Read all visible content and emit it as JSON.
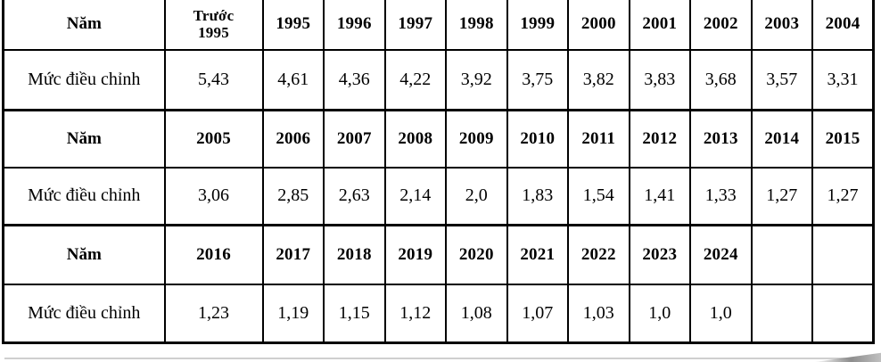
{
  "table": {
    "year_label": "Năm",
    "value_label": "Mức điều chỉnh",
    "sections": [
      {
        "years": [
          "Trước\n1995",
          "1995",
          "1996",
          "1997",
          "1998",
          "1999",
          "2000",
          "2001",
          "2002",
          "2003",
          "2004"
        ],
        "values": [
          "5,43",
          "4,61",
          "4,36",
          "4,22",
          "3,92",
          "3,75",
          "3,82",
          "3,83",
          "3,68",
          "3,57",
          "3,31"
        ]
      },
      {
        "years": [
          "2005",
          "2006",
          "2007",
          "2008",
          "2009",
          "2010",
          "2011",
          "2012",
          "2013",
          "2014",
          "2015"
        ],
        "values": [
          "3,06",
          "2,85",
          "2,63",
          "2,14",
          "2,0",
          "1,83",
          "1,54",
          "1,41",
          "1,33",
          "1,27",
          "1,27"
        ]
      },
      {
        "years": [
          "2016",
          "2017",
          "2018",
          "2019",
          "2020",
          "2021",
          "2022",
          "2023",
          "2024",
          "",
          ""
        ],
        "values": [
          "1,23",
          "1,19",
          "1,15",
          "1,12",
          "1,08",
          "1,07",
          "1,03",
          "1,0",
          "1,0",
          "",
          ""
        ]
      }
    ]
  }
}
